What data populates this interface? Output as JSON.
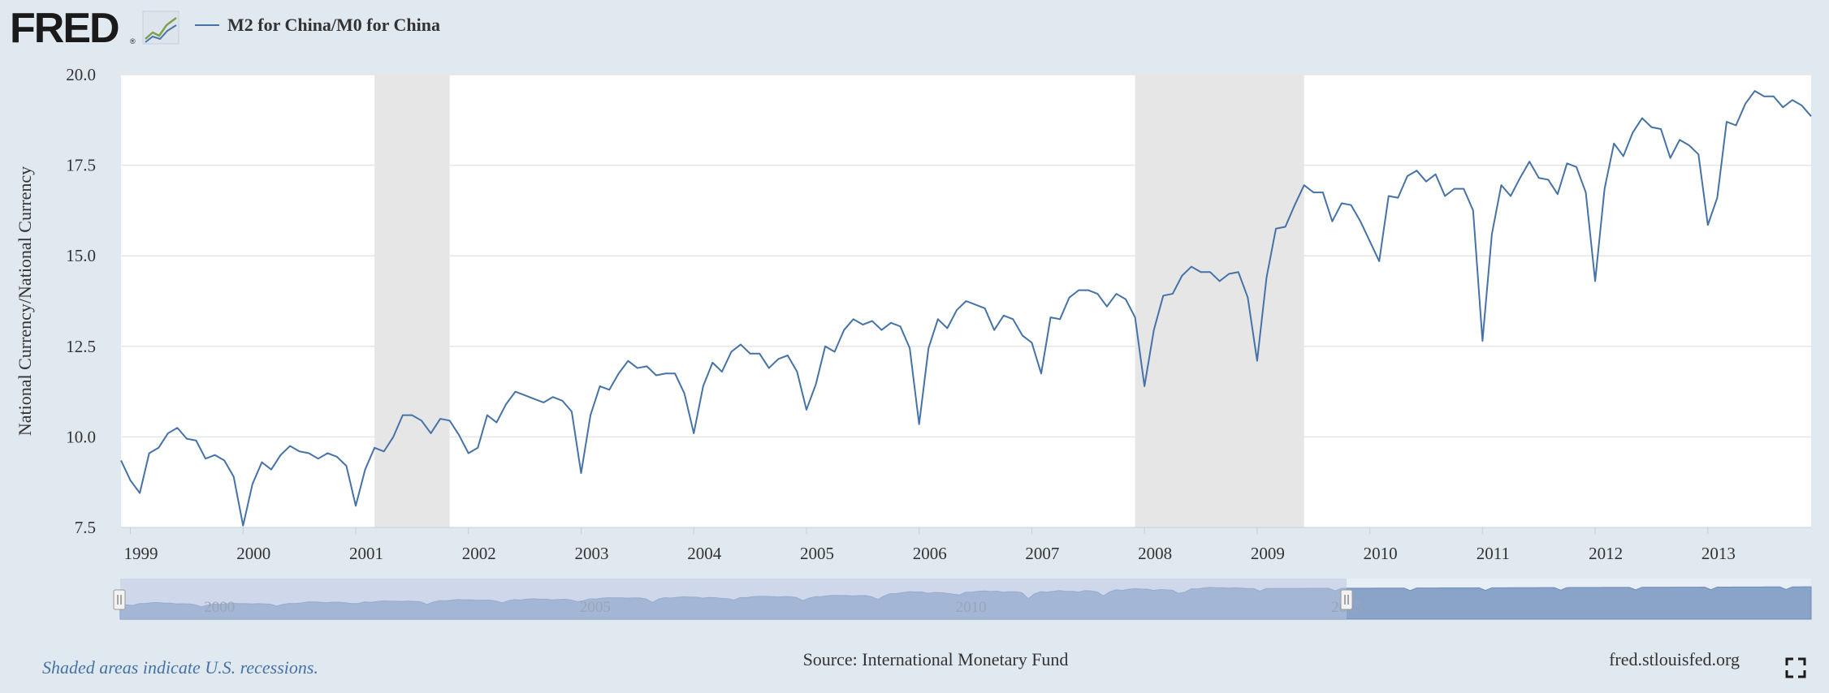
{
  "header": {
    "logo_text": "FRED",
    "legend_label": "M2 for China/M0 for China"
  },
  "footer": {
    "recession_note": "Shaded areas indicate U.S. recessions.",
    "source": "Source: International Monetary Fund",
    "site": "fred.stlouisfed.org"
  },
  "icons": {
    "logo_chart": "line-chart-icon",
    "fullscreen": "fullscreen-icon"
  },
  "colors": {
    "background": "#e1e9f0",
    "plot_background": "#ffffff",
    "series": "#4572a7",
    "recession": "#e6e6e6",
    "navigator_mask": "#b8c6e0",
    "navigator_series": "#8aa3c9",
    "text": "#333333",
    "note": "#4572a7"
  },
  "chart_data": {
    "type": "line",
    "ylabel": "National Currency/National Currency",
    "xlabel": "",
    "title": "",
    "ylim": [
      7.5,
      20.0
    ],
    "xlim": [
      "1998-12",
      "2013-12"
    ],
    "yticks": [
      "7.5",
      "10.0",
      "12.5",
      "15.0",
      "17.5",
      "20.0"
    ],
    "xticks": [
      "1999",
      "2000",
      "2001",
      "2002",
      "2003",
      "2004",
      "2005",
      "2006",
      "2007",
      "2008",
      "2009",
      "2010",
      "2011",
      "2012",
      "2013"
    ],
    "grid": true,
    "recessions": [
      {
        "start": "2001-03",
        "end": "2001-11"
      },
      {
        "start": "2007-12",
        "end": "2009-06"
      }
    ],
    "navigator": {
      "labels": [
        "2000",
        "2005",
        "2010",
        "2015"
      ],
      "selected": {
        "start": "1998-12",
        "end": "2013-12"
      }
    },
    "series": [
      {
        "name": "M2 for China/M0 for China",
        "start": "1998-12",
        "frequency": "monthly",
        "values": [
          9.35,
          8.8,
          8.45,
          9.55,
          9.7,
          10.1,
          10.25,
          9.95,
          9.9,
          9.4,
          9.5,
          9.35,
          8.9,
          7.55,
          8.7,
          9.3,
          9.1,
          9.5,
          9.75,
          9.6,
          9.55,
          9.4,
          9.55,
          9.45,
          9.2,
          8.1,
          9.1,
          9.7,
          9.6,
          10.0,
          10.6,
          10.6,
          10.45,
          10.1,
          10.5,
          10.45,
          10.05,
          9.55,
          9.7,
          10.6,
          10.4,
          10.9,
          11.25,
          11.15,
          11.05,
          10.95,
          11.1,
          11.0,
          10.7,
          9.0,
          10.6,
          11.4,
          11.3,
          11.75,
          12.1,
          11.9,
          11.95,
          11.7,
          11.75,
          11.75,
          11.2,
          10.1,
          11.4,
          12.05,
          11.8,
          12.35,
          12.55,
          12.3,
          12.3,
          11.9,
          12.15,
          12.25,
          11.8,
          10.75,
          11.45,
          12.5,
          12.35,
          12.95,
          13.25,
          13.1,
          13.2,
          12.95,
          13.15,
          13.05,
          12.45,
          10.35,
          12.45,
          13.25,
          13.0,
          13.5,
          13.75,
          13.65,
          13.55,
          12.95,
          13.35,
          13.25,
          12.8,
          12.6,
          11.75,
          13.3,
          13.25,
          13.85,
          14.05,
          14.05,
          13.95,
          13.6,
          13.95,
          13.8,
          13.3,
          11.4,
          12.95,
          13.9,
          13.95,
          14.45,
          14.7,
          14.55,
          14.55,
          14.3,
          14.5,
          14.55,
          13.85,
          12.1,
          14.4,
          15.75,
          15.8,
          16.4,
          16.95,
          16.75,
          16.75,
          15.95,
          16.45,
          16.4,
          15.95,
          15.4,
          14.85,
          16.65,
          16.6,
          17.2,
          17.35,
          17.05,
          17.25,
          16.65,
          16.85,
          16.85,
          16.25,
          12.65,
          15.6,
          16.95,
          16.65,
          17.15,
          17.6,
          17.15,
          17.1,
          16.7,
          17.55,
          17.45,
          16.75,
          14.3,
          16.85,
          18.1,
          17.75,
          18.4,
          18.8,
          18.55,
          18.5,
          17.7,
          18.2,
          18.05,
          17.8,
          15.85,
          16.6,
          18.7,
          18.6,
          19.2,
          19.55,
          19.4,
          19.4,
          19.1,
          19.3,
          19.15,
          18.85
        ]
      }
    ]
  }
}
